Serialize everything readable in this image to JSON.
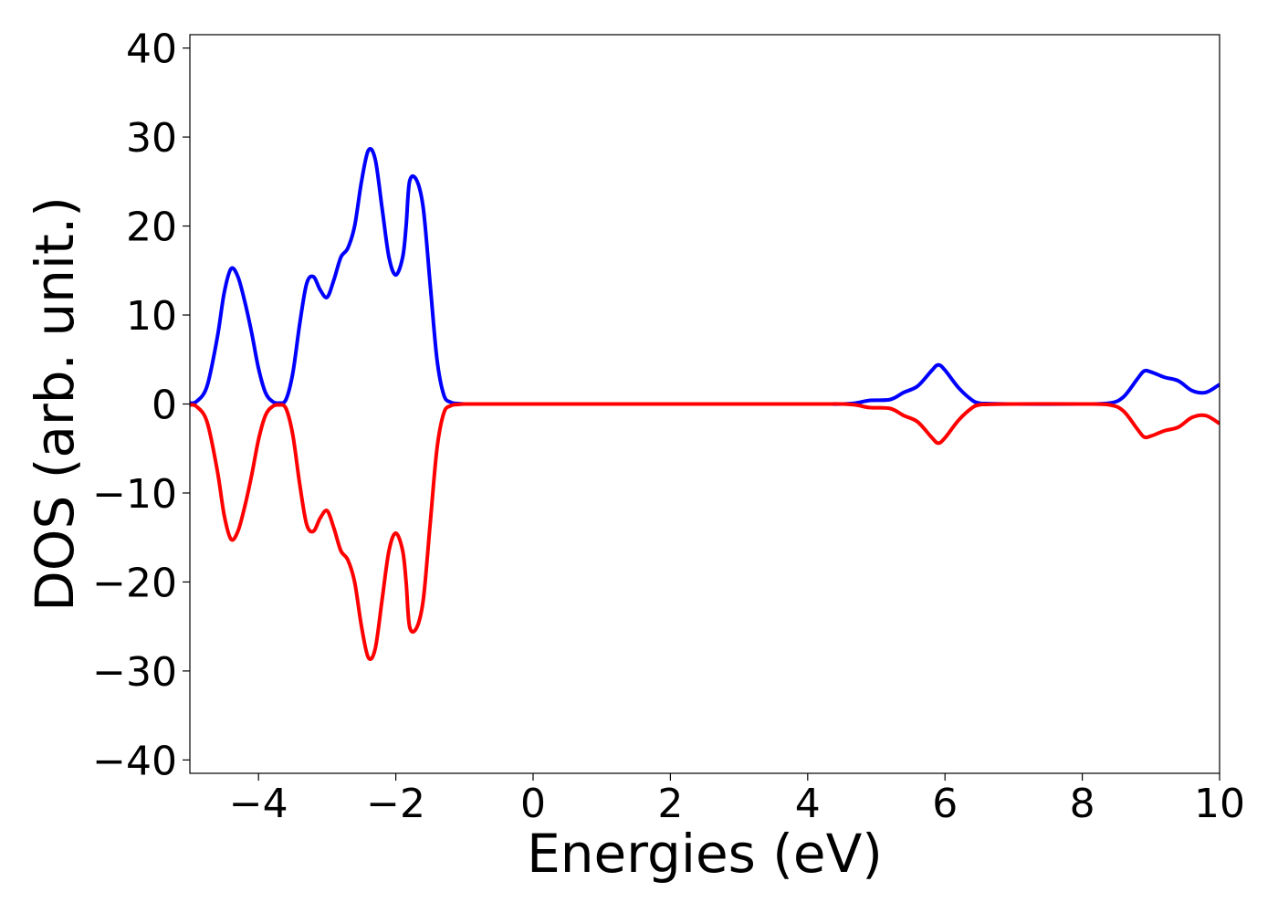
{
  "chart_data": {
    "type": "line",
    "title": "",
    "xlabel": "Energies (eV)",
    "ylabel": "DOS (arb. unit.)",
    "xlim": [
      -5,
      10
    ],
    "ylim": [
      -41.5,
      41.5
    ],
    "xticks": [
      -4,
      -2,
      0,
      2,
      4,
      6,
      8,
      10
    ],
    "xtick_labels": [
      "−4",
      "−2",
      "0",
      "2",
      "4",
      "6",
      "8",
      "10"
    ],
    "yticks": [
      40,
      30,
      20,
      10,
      0,
      -10,
      -20,
      -30,
      -40
    ],
    "ytick_labels": [
      "40",
      "30",
      "20",
      "10",
      "0",
      "−10",
      "−20",
      "−30",
      "−40"
    ],
    "grid": false,
    "legend": "none",
    "series": [
      {
        "color": "#0000ff",
        "x": [
          -5.0,
          -4.9,
          -4.75,
          -4.6,
          -4.5,
          -4.4,
          -4.3,
          -4.2,
          -4.1,
          -4.0,
          -3.9,
          -3.8,
          -3.7,
          -3.6,
          -3.5,
          -3.4,
          -3.3,
          -3.2,
          -3.1,
          -3.0,
          -2.9,
          -2.8,
          -2.7,
          -2.6,
          -2.5,
          -2.4,
          -2.3,
          -2.2,
          -2.1,
          -2.0,
          -1.9,
          -1.85,
          -1.8,
          -1.7,
          -1.6,
          -1.5,
          -1.4,
          -1.3,
          -1.2,
          -1.1,
          -1.0,
          -0.9,
          -0.8,
          -0.7,
          -0.6,
          -0.5,
          0.0,
          2.0,
          4.0,
          4.5,
          4.7,
          4.9,
          5.2,
          5.4,
          5.6,
          5.8,
          5.9,
          6.0,
          6.2,
          6.4,
          6.5,
          6.6,
          7.0,
          8.0,
          8.4,
          8.6,
          8.8,
          8.9,
          9.0,
          9.2,
          9.4,
          9.6,
          9.8,
          10.0
        ],
        "y": [
          0.1,
          0.3,
          2.0,
          7.5,
          12.5,
          15.2,
          14.3,
          11.5,
          8.0,
          4.0,
          1.3,
          0.3,
          0.1,
          0.5,
          3.5,
          9.0,
          13.5,
          14.3,
          12.8,
          12.0,
          14.0,
          16.5,
          17.5,
          20.0,
          25.0,
          28.5,
          27.5,
          22.0,
          16.5,
          14.5,
          16.5,
          20.0,
          25.0,
          25.2,
          22.0,
          13.5,
          5.0,
          1.0,
          0.2,
          0.05,
          0.0,
          0.0,
          0.0,
          0.0,
          0.0,
          0.0,
          0.0,
          0.0,
          0.0,
          0.0,
          0.1,
          0.4,
          0.5,
          1.3,
          2.0,
          3.7,
          4.4,
          3.8,
          1.8,
          0.4,
          0.1,
          0.05,
          0.0,
          0.0,
          0.1,
          0.8,
          2.8,
          3.7,
          3.6,
          3.0,
          2.6,
          1.5,
          1.3,
          2.2
        ]
      },
      {
        "color": "#ff0000",
        "x": [
          -5.0,
          -4.9,
          -4.75,
          -4.6,
          -4.5,
          -4.4,
          -4.3,
          -4.2,
          -4.1,
          -4.0,
          -3.9,
          -3.8,
          -3.7,
          -3.6,
          -3.5,
          -3.4,
          -3.3,
          -3.2,
          -3.1,
          -3.0,
          -2.9,
          -2.8,
          -2.7,
          -2.6,
          -2.5,
          -2.4,
          -2.3,
          -2.2,
          -2.1,
          -2.0,
          -1.9,
          -1.85,
          -1.8,
          -1.7,
          -1.6,
          -1.5,
          -1.4,
          -1.3,
          -1.2,
          -1.1,
          -1.0,
          -0.9,
          -0.8,
          -0.7,
          -0.6,
          -0.5,
          0.0,
          2.0,
          4.0,
          4.5,
          4.7,
          4.9,
          5.2,
          5.4,
          5.6,
          5.8,
          5.9,
          6.0,
          6.2,
          6.4,
          6.5,
          6.6,
          7.0,
          8.0,
          8.4,
          8.6,
          8.8,
          8.9,
          9.0,
          9.2,
          9.4,
          9.6,
          9.8,
          10.0
        ],
        "y": [
          -0.1,
          -0.3,
          -2.0,
          -7.5,
          -12.5,
          -15.2,
          -14.3,
          -11.5,
          -8.0,
          -4.0,
          -1.3,
          -0.3,
          -0.1,
          -0.5,
          -3.5,
          -9.0,
          -13.5,
          -14.3,
          -12.8,
          -12.0,
          -14.0,
          -16.5,
          -17.5,
          -20.0,
          -25.0,
          -28.5,
          -27.5,
          -22.0,
          -16.5,
          -14.5,
          -16.5,
          -20.0,
          -25.0,
          -25.2,
          -22.0,
          -13.5,
          -5.0,
          -1.0,
          -0.2,
          -0.05,
          0.0,
          0.0,
          0.0,
          0.0,
          0.0,
          0.0,
          0.0,
          0.0,
          0.0,
          0.0,
          -0.1,
          -0.4,
          -0.5,
          -1.3,
          -2.0,
          -3.7,
          -4.4,
          -3.8,
          -1.8,
          -0.4,
          -0.1,
          -0.05,
          0.0,
          0.0,
          -0.1,
          -0.8,
          -2.8,
          -3.7,
          -3.6,
          -3.0,
          -2.6,
          -1.5,
          -1.3,
          -2.2
        ]
      }
    ]
  }
}
